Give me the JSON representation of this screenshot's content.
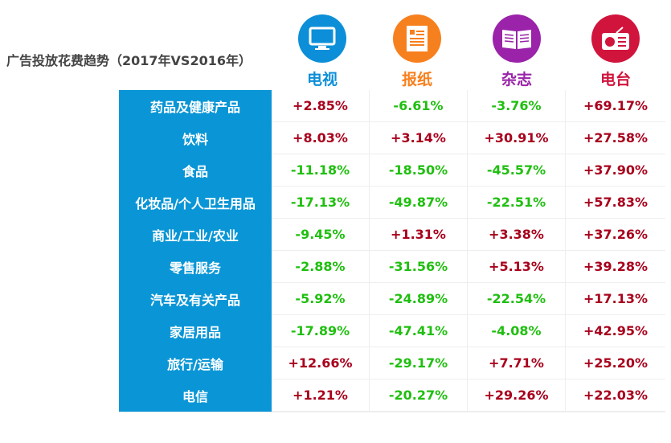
{
  "title": "广告投放花费趋势（2017年VS2016年）",
  "media": [
    {
      "name": "电视",
      "icon": "tv-icon",
      "color": "#0c8fd8"
    },
    {
      "name": "报纸",
      "icon": "newspaper-icon",
      "color": "#f7801e"
    },
    {
      "name": "杂志",
      "icon": "magazine-icon",
      "color": "#9a23a9"
    },
    {
      "name": "电台",
      "icon": "radio-icon",
      "color": "#d1143c"
    }
  ],
  "colors": {
    "positive": "#a8001c",
    "negative": "#1fbf0f",
    "category_bg": "#0a96d6"
  },
  "chart_data": {
    "type": "table",
    "title": "广告投放花费趋势（2017年VS2016年）",
    "columns": [
      "电视",
      "报纸",
      "杂志",
      "电台"
    ],
    "rows": [
      {
        "category": "药品及健康产品",
        "values": [
          "+2.85%",
          "-6.61%",
          "-3.76%",
          "+69.17%"
        ]
      },
      {
        "category": "饮料",
        "values": [
          "+8.03%",
          "+3.14%",
          "+30.91%",
          "+27.58%"
        ]
      },
      {
        "category": "食品",
        "values": [
          "-11.18%",
          "-18.50%",
          "-45.57%",
          "+37.90%"
        ]
      },
      {
        "category": "化妆品/个人卫生用品",
        "values": [
          "-17.13%",
          "-49.87%",
          "-22.51%",
          "+57.83%"
        ]
      },
      {
        "category": "商业/工业/农业",
        "values": [
          "-9.45%",
          "+1.31%",
          "+3.38%",
          "+37.26%"
        ]
      },
      {
        "category": "零售服务",
        "values": [
          "-2.88%",
          "-31.56%",
          "+5.13%",
          "+39.28%"
        ]
      },
      {
        "category": "汽车及有关产品",
        "values": [
          "-5.92%",
          "-24.89%",
          "-22.54%",
          "+17.13%"
        ]
      },
      {
        "category": "家居用品",
        "values": [
          "-17.89%",
          "-47.41%",
          "-4.08%",
          "+42.95%"
        ]
      },
      {
        "category": "旅行/运输",
        "values": [
          "+12.66%",
          "-29.17%",
          "+7.71%",
          "+25.20%"
        ]
      },
      {
        "category": "电信",
        "values": [
          "+1.21%",
          "-20.27%",
          "+29.26%",
          "+22.03%"
        ]
      }
    ]
  }
}
